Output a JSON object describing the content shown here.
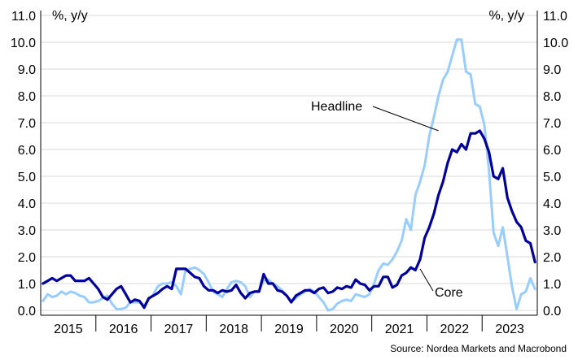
{
  "chart_data": {
    "type": "line",
    "units_left": "%, y/y",
    "units_right": "%, y/y",
    "y_ticks": [
      "0.0",
      "1.0",
      "2.0",
      "3.0",
      "4.0",
      "5.0",
      "6.0",
      "7.0",
      "8.0",
      "9.0",
      "10.0",
      "11.0"
    ],
    "ylim": [
      0,
      11
    ],
    "x_labels": [
      "2015",
      "2016",
      "2017",
      "2018",
      "2019",
      "2020",
      "2021",
      "2022",
      "2023"
    ],
    "x_start": "2015-01",
    "grid": true,
    "source": "Source: Nordea Markets and Macrobond",
    "series": [
      {
        "name": "Headline",
        "color": "#99ccff",
        "values": [
          0.35,
          0.6,
          0.5,
          0.55,
          0.7,
          0.6,
          0.7,
          0.65,
          0.55,
          0.5,
          0.3,
          0.3,
          0.35,
          0.45,
          0.55,
          0.25,
          0.05,
          0.05,
          0.1,
          0.3,
          0.3,
          0.3,
          0.2,
          0.4,
          0.6,
          0.9,
          1.0,
          1.0,
          1.05,
          0.9,
          0.6,
          1.5,
          1.55,
          1.6,
          1.5,
          1.35,
          1.05,
          0.7,
          0.6,
          0.5,
          0.8,
          1.05,
          1.1,
          1.05,
          0.9,
          0.5,
          0.7,
          0.75,
          1.1,
          1.15,
          1.0,
          0.9,
          0.75,
          0.55,
          0.35,
          0.45,
          0.6,
          0.7,
          0.8,
          0.7,
          0.5,
          0.3,
          0.0,
          0.05,
          0.25,
          0.35,
          0.4,
          0.35,
          0.6,
          0.55,
          0.5,
          0.6,
          1.0,
          1.5,
          1.75,
          1.7,
          1.9,
          2.2,
          2.6,
          3.4,
          3.0,
          4.3,
          4.8,
          5.4,
          6.5,
          7.2,
          8.0,
          8.6,
          8.9,
          9.5,
          10.1,
          10.1,
          8.9,
          8.8,
          7.7,
          7.6,
          6.9,
          5.2,
          2.9,
          2.4,
          3.1,
          2.0,
          0.9,
          0.05,
          0.6,
          0.7,
          1.2,
          0.8
        ]
      },
      {
        "name": "Core",
        "color": "#000099",
        "values": [
          1.0,
          1.1,
          1.2,
          1.1,
          1.2,
          1.3,
          1.3,
          1.1,
          1.1,
          1.1,
          1.2,
          1.0,
          0.8,
          0.5,
          0.4,
          0.6,
          0.8,
          0.9,
          0.6,
          0.3,
          0.4,
          0.35,
          0.1,
          0.45,
          0.55,
          0.65,
          0.8,
          0.9,
          0.8,
          1.55,
          1.55,
          1.55,
          1.4,
          1.25,
          1.2,
          0.9,
          0.75,
          0.75,
          0.65,
          0.75,
          0.7,
          0.75,
          0.95,
          0.65,
          0.45,
          0.65,
          0.7,
          0.7,
          1.35,
          1.0,
          1.0,
          0.75,
          0.7,
          0.55,
          0.3,
          0.55,
          0.65,
          0.75,
          0.75,
          0.65,
          0.8,
          0.85,
          0.65,
          0.7,
          0.85,
          0.8,
          0.9,
          0.85,
          1.15,
          1.0,
          0.95,
          0.75,
          0.9,
          0.9,
          1.25,
          1.25,
          0.85,
          0.95,
          1.3,
          1.4,
          1.6,
          1.5,
          1.9,
          2.7,
          3.1,
          3.6,
          4.3,
          4.8,
          5.5,
          6.0,
          5.9,
          6.2,
          6.0,
          6.6,
          6.6,
          6.7,
          6.4,
          5.9,
          5.0,
          4.9,
          5.3,
          4.2,
          3.7,
          3.3,
          3.1,
          2.6,
          2.5,
          1.8
        ]
      }
    ],
    "annotations": [
      {
        "text": "Headline",
        "series": "Headline",
        "at_month": 86,
        "pointer_value": 6.7
      },
      {
        "text": "Core",
        "series": "Core",
        "at_month": 82,
        "pointer_value": 1.55
      }
    ]
  }
}
